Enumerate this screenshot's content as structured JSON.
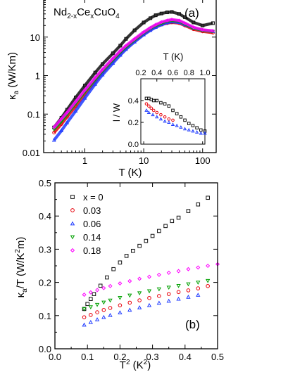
{
  "chart_data": [
    {
      "panel": "(a)",
      "type": "line",
      "formula": {
        "base": "Nd",
        "sub1": "2-x",
        "mid": "Ce",
        "sub2": "x",
        "tail": "CuO",
        "sub3": "4"
      },
      "xlabel": "T (K)",
      "ylabel": {
        "main": "κ",
        "sub": "a",
        "tail": " (W/Km)"
      },
      "xscale": "log",
      "yscale": "log",
      "xlim": [
        0.2,
        170
      ],
      "ylim": [
        0.01,
        100
      ],
      "xticks": [
        {
          "v": 1,
          "label": "1"
        },
        {
          "v": 10,
          "label": "10"
        },
        {
          "v": 100,
          "label": "100"
        }
      ],
      "yticks": [
        {
          "v": 0.01,
          "label": "0.01"
        },
        {
          "v": 0.1,
          "label": "0.1"
        },
        {
          "v": 1,
          "label": "1"
        },
        {
          "v": 10,
          "label": "10"
        }
      ],
      "series": [
        {
          "color": "#111111",
          "marker": "square",
          "x": [
            0.3,
            0.4,
            0.5,
            0.7,
            1,
            1.5,
            2,
            3,
            4,
            5,
            7,
            10,
            13,
            16,
            20,
            25,
            30,
            40,
            50,
            70,
            100,
            150
          ],
          "y": [
            0.045,
            0.08,
            0.13,
            0.27,
            0.55,
            1.2,
            2.0,
            3.8,
            6.0,
            9.0,
            15,
            24,
            31,
            37,
            41,
            44,
            45,
            40,
            33,
            24,
            20,
            23
          ]
        },
        {
          "color": "#e8000b",
          "marker": "circle",
          "x": [
            0.3,
            0.4,
            0.5,
            0.7,
            1,
            1.5,
            2,
            3,
            4,
            5,
            7,
            10,
            13,
            16,
            20,
            25,
            30,
            40,
            50,
            70,
            100,
            150
          ],
          "y": [
            0.033,
            0.055,
            0.085,
            0.16,
            0.32,
            0.7,
            1.2,
            2.4,
            3.8,
            5.2,
            8.0,
            12,
            15.5,
            18.5,
            21,
            23,
            24,
            23,
            20,
            16,
            14,
            13
          ]
        },
        {
          "color": "#1f3bff",
          "marker": "triangle",
          "x": [
            0.3,
            0.4,
            0.5,
            0.7,
            1,
            1.5,
            2,
            3,
            4,
            5,
            7,
            10,
            13,
            16,
            20,
            25,
            30,
            40,
            50,
            70,
            100,
            150
          ],
          "y": [
            0.021,
            0.037,
            0.06,
            0.12,
            0.26,
            0.6,
            1.05,
            2.1,
            3.4,
            4.8,
            7.5,
            11.5,
            15,
            18,
            21,
            23.5,
            25,
            24,
            21,
            17,
            15,
            14
          ]
        },
        {
          "color": "#00a000",
          "marker": "tri-down",
          "x": [
            0.3,
            0.4,
            0.5,
            0.7,
            1,
            1.5,
            2,
            3,
            4,
            5,
            7,
            10,
            13,
            16,
            20,
            25,
            30,
            40,
            50,
            70,
            100,
            150
          ],
          "y": [
            0.04,
            0.065,
            0.1,
            0.19,
            0.38,
            0.8,
            1.35,
            2.6,
            4.1,
            5.6,
            8.5,
            13,
            17,
            20,
            23,
            26,
            27,
            26,
            22,
            17,
            15,
            14
          ]
        },
        {
          "color": "#ff00ff",
          "marker": "diamond",
          "x": [
            0.3,
            0.4,
            0.5,
            0.7,
            1,
            1.5,
            2,
            3,
            4,
            5,
            7,
            10,
            13,
            16,
            20,
            25,
            30,
            40,
            50,
            70,
            100,
            150
          ],
          "y": [
            0.045,
            0.075,
            0.11,
            0.21,
            0.42,
            0.88,
            1.45,
            2.8,
            4.4,
            6.0,
            9.0,
            13.5,
            17.5,
            21,
            24.5,
            27,
            28.5,
            27,
            23,
            18,
            15.5,
            14.5
          ]
        }
      ],
      "inset": {
        "xlabel": "T (K)",
        "ylabel": "l / W",
        "xlim": [
          0.2,
          1.0
        ],
        "ylim": [
          0.0,
          0.6
        ],
        "xticks": [
          {
            "v": 0.2,
            "label": "0.2"
          },
          {
            "v": 0.4,
            "label": "0.4"
          },
          {
            "v": 0.6,
            "label": "0.6"
          },
          {
            "v": 0.8,
            "label": "0.8"
          },
          {
            "v": 1.0,
            "label": "1.0"
          }
        ],
        "yticks": [
          {
            "v": 0.0,
            "label": "0.0"
          },
          {
            "v": 0.2,
            "label": "0.2"
          },
          {
            "v": 0.4,
            "label": "0.4"
          }
        ],
        "series": [
          {
            "color": "#111111",
            "marker": "square",
            "x": [
              0.27,
              0.3,
              0.33,
              0.36,
              0.4,
              0.45,
              0.5,
              0.55,
              0.6,
              0.65,
              0.7,
              0.75,
              0.8,
              0.85,
              0.9,
              0.95,
              1.0
            ],
            "y": [
              0.42,
              0.42,
              0.41,
              0.4,
              0.4,
              0.38,
              0.37,
              0.35,
              0.31,
              0.28,
              0.25,
              0.22,
              0.19,
              0.17,
              0.15,
              0.13,
              0.12
            ]
          },
          {
            "color": "#e8000b",
            "marker": "circle",
            "x": [
              0.27,
              0.3,
              0.33,
              0.36,
              0.4,
              0.45,
              0.5,
              0.55,
              0.6
            ],
            "y": [
              0.37,
              0.35,
              0.33,
              0.31,
              0.29,
              0.27,
              0.25,
              0.23,
              0.22
            ]
          },
          {
            "color": "#1f3bff",
            "marker": "triangle",
            "x": [
              0.27,
              0.3,
              0.35,
              0.4,
              0.45,
              0.5,
              0.55,
              0.6,
              0.65,
              0.7,
              0.75,
              0.8,
              0.85,
              0.9,
              0.95,
              1.0
            ],
            "y": [
              0.31,
              0.29,
              0.27,
              0.25,
              0.23,
              0.21,
              0.2,
              0.18,
              0.17,
              0.155,
              0.14,
              0.13,
              0.12,
              0.11,
              0.1,
              0.1
            ]
          }
        ]
      }
    },
    {
      "panel": "(b)",
      "type": "scatter",
      "xlabel": {
        "main": "T",
        "sup": "2",
        "tail": " (K",
        "sup2": "2",
        "end": ")"
      },
      "ylabel": {
        "main": "κ",
        "sub": "a",
        "tail": "/T (W/K",
        "sup": "2",
        "end": "m)"
      },
      "xlim": [
        0.0,
        0.5
      ],
      "ylim": [
        0.0,
        0.5
      ],
      "xticks": [
        {
          "v": 0.0,
          "label": "0.0"
        },
        {
          "v": 0.1,
          "label": "0.1"
        },
        {
          "v": 0.2,
          "label": "0.2"
        },
        {
          "v": 0.3,
          "label": "0.3"
        },
        {
          "v": 0.4,
          "label": "0.4"
        },
        {
          "v": 0.5,
          "label": "0.5"
        }
      ],
      "yticks": [
        {
          "v": 0.0,
          "label": "0.0"
        },
        {
          "v": 0.1,
          "label": "0.1"
        },
        {
          "v": 0.2,
          "label": "0.2"
        },
        {
          "v": 0.3,
          "label": "0.3"
        },
        {
          "v": 0.4,
          "label": "0.4"
        },
        {
          "v": 0.5,
          "label": "0.5"
        }
      ],
      "series": [
        {
          "name": "x = 0",
          "color": "#111111",
          "marker": "square",
          "x": [
            0.09,
            0.1,
            0.11,
            0.12,
            0.14,
            0.16,
            0.18,
            0.2,
            0.22,
            0.24,
            0.26,
            0.28,
            0.3,
            0.32,
            0.34,
            0.36,
            0.38,
            0.41,
            0.44,
            0.47
          ],
          "y": [
            0.12,
            0.135,
            0.15,
            0.165,
            0.19,
            0.215,
            0.24,
            0.26,
            0.28,
            0.295,
            0.31,
            0.325,
            0.34,
            0.355,
            0.37,
            0.385,
            0.395,
            0.415,
            0.435,
            0.455
          ]
        },
        {
          "name": "0.03",
          "color": "#e8000b",
          "marker": "circle",
          "x": [
            0.09,
            0.11,
            0.13,
            0.15,
            0.17,
            0.2,
            0.23,
            0.26,
            0.29,
            0.32,
            0.35,
            0.38,
            0.41,
            0.44,
            0.47
          ],
          "y": [
            0.095,
            0.102,
            0.11,
            0.117,
            0.123,
            0.131,
            0.139,
            0.146,
            0.153,
            0.159,
            0.165,
            0.171,
            0.176,
            0.182,
            0.189
          ]
        },
        {
          "name": "0.06",
          "color": "#1f3bff",
          "marker": "triangle",
          "x": [
            0.09,
            0.11,
            0.13,
            0.15,
            0.17,
            0.2,
            0.23,
            0.26,
            0.29,
            0.32,
            0.35,
            0.38,
            0.41,
            0.44
          ],
          "y": [
            0.072,
            0.08,
            0.088,
            0.095,
            0.101,
            0.109,
            0.117,
            0.124,
            0.131,
            0.138,
            0.144,
            0.15,
            0.156,
            0.162
          ]
        },
        {
          "name": "0.14",
          "color": "#00a000",
          "marker": "tri-down",
          "x": [
            0.09,
            0.11,
            0.13,
            0.15,
            0.17,
            0.2,
            0.23,
            0.26,
            0.29,
            0.32,
            0.35,
            0.38,
            0.41,
            0.44,
            0.47
          ],
          "y": [
            0.12,
            0.126,
            0.133,
            0.14,
            0.146,
            0.154,
            0.161,
            0.168,
            0.174,
            0.18,
            0.185,
            0.19,
            0.195,
            0.2,
            0.205
          ]
        },
        {
          "name": "0.18",
          "color": "#ff00ff",
          "marker": "diamond",
          "x": [
            0.09,
            0.11,
            0.13,
            0.15,
            0.17,
            0.2,
            0.23,
            0.26,
            0.29,
            0.32,
            0.35,
            0.38,
            0.41,
            0.44,
            0.47,
            0.5
          ],
          "y": [
            0.163,
            0.17,
            0.177,
            0.183,
            0.189,
            0.197,
            0.204,
            0.211,
            0.217,
            0.223,
            0.229,
            0.234,
            0.24,
            0.245,
            0.25,
            0.255
          ]
        }
      ]
    }
  ]
}
